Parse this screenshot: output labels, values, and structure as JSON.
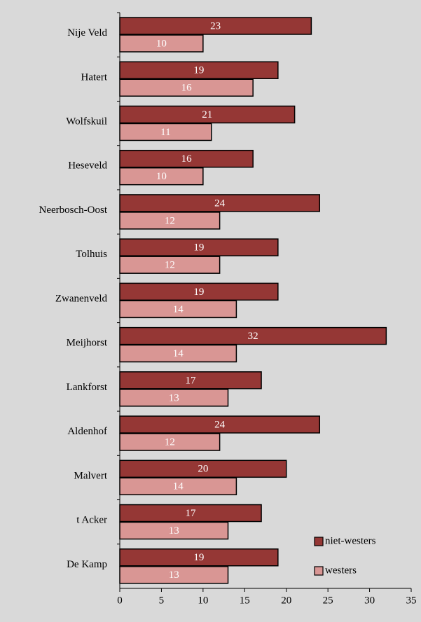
{
  "chart_data": {
    "type": "bar",
    "orientation": "horizontal",
    "categories": [
      "Nije Veld",
      "Hatert",
      "Wolfskuil",
      "Heseveld",
      "Neerbosch-Oost",
      "Tolhuis",
      "Zwanenveld",
      "Meijhorst",
      "Lankforst",
      "Aldenhof",
      "Malvert",
      "t Acker",
      "De Kamp"
    ],
    "series": [
      {
        "name": "niet-westers",
        "color": "#953735",
        "values": [
          23,
          19,
          21,
          16,
          24,
          19,
          19,
          32,
          17,
          24,
          20,
          17,
          19
        ]
      },
      {
        "name": "westers",
        "color": "#d99694",
        "values": [
          10,
          16,
          11,
          10,
          12,
          12,
          14,
          14,
          13,
          12,
          14,
          13,
          13
        ]
      }
    ],
    "xlim": [
      0,
      35
    ],
    "xticks": [
      0,
      5,
      10,
      15,
      20,
      25,
      30,
      35
    ],
    "legend": "lower right",
    "grid": false
  }
}
